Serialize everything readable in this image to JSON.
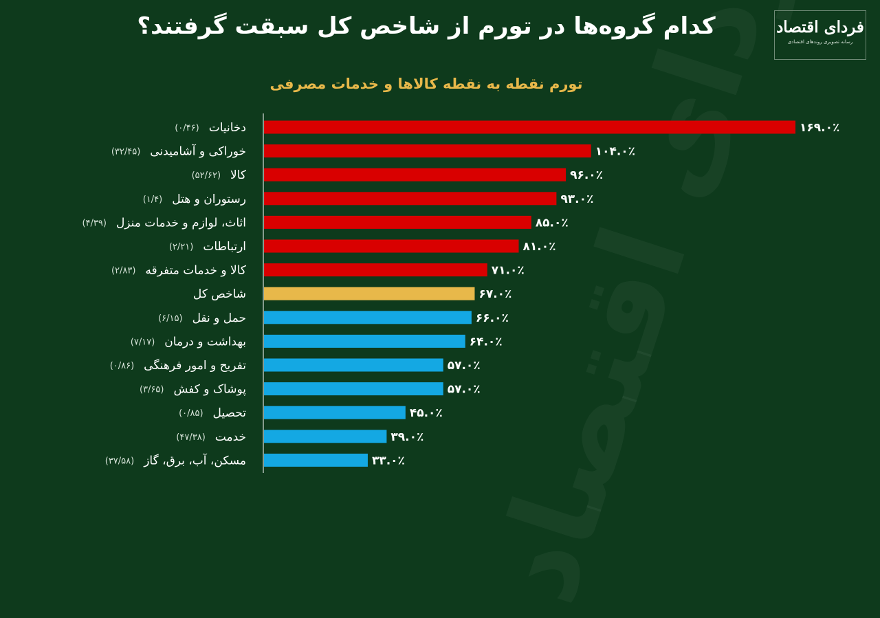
{
  "header": {
    "title": "کدام گروه‌ها در تورم از شاخص کل سبقت گرفتند؟",
    "logo_text": "فردای اقتصاد",
    "logo_tagline": "رسانه تصویری روندهای اقتصادی"
  },
  "colors": {
    "background": "#0e3a1c",
    "above_index": "#d90000",
    "index": "#e8b84a",
    "below_index": "#14a8e3",
    "subtitle": "#e8b84a"
  },
  "chart_data": {
    "type": "bar",
    "orientation": "horizontal",
    "title": "تورم نقطه به نقطه کالاها و خدمات مصرفی",
    "xlim": [
      0,
      175
    ],
    "grid": false,
    "categories": [
      "دخانیات",
      "خوراکی و آشامیدنی",
      "کالا",
      "رستوران و هتل",
      "اثاث، لوازم و خدمات منزل",
      "ارتباطات",
      "کالا و خدمات متفرقه",
      "شاخص کل",
      "حمل و نقل",
      "بهداشت و درمان",
      "تفریح و امور فرهنگی",
      "پوشاک و کفش",
      "تحصیل",
      "خدمت",
      "مسکن، آب، برق، گاز"
    ],
    "weights": [
      "(۰/۴۶)",
      "(۳۲/۴۵)",
      "(۵۲/۶۲)",
      "(۱/۴)",
      "(۴/۳۹)",
      "(۲/۲۱)",
      "(۲/۸۳)",
      "",
      "(۶/۱۵)",
      "(۷/۱۷)",
      "(۰/۸۶)",
      "(۳/۶۵)",
      "(۰/۸۵)",
      "(۴۷/۳۸)",
      "(۳۷/۵۸)"
    ],
    "values": [
      169,
      104,
      96,
      93,
      85,
      81,
      71,
      67,
      66,
      64,
      57,
      57,
      45,
      39,
      33
    ],
    "value_labels": [
      "۱۶۹.۰٪",
      "۱۰۴.۰٪",
      "۹۶.۰٪",
      "۹۳.۰٪",
      "۸۵.۰٪",
      "۸۱.۰٪",
      "۷۱.۰٪",
      "۶۷.۰٪",
      "۶۶.۰٪",
      "۶۴.۰٪",
      "۵۷.۰٪",
      "۵۷.۰٪",
      "۴۵.۰٪",
      "۳۹.۰٪",
      "۳۳.۰٪"
    ],
    "groups": [
      "above",
      "above",
      "above",
      "above",
      "above",
      "above",
      "above",
      "index",
      "below",
      "below",
      "below",
      "below",
      "below",
      "below",
      "below"
    ]
  }
}
